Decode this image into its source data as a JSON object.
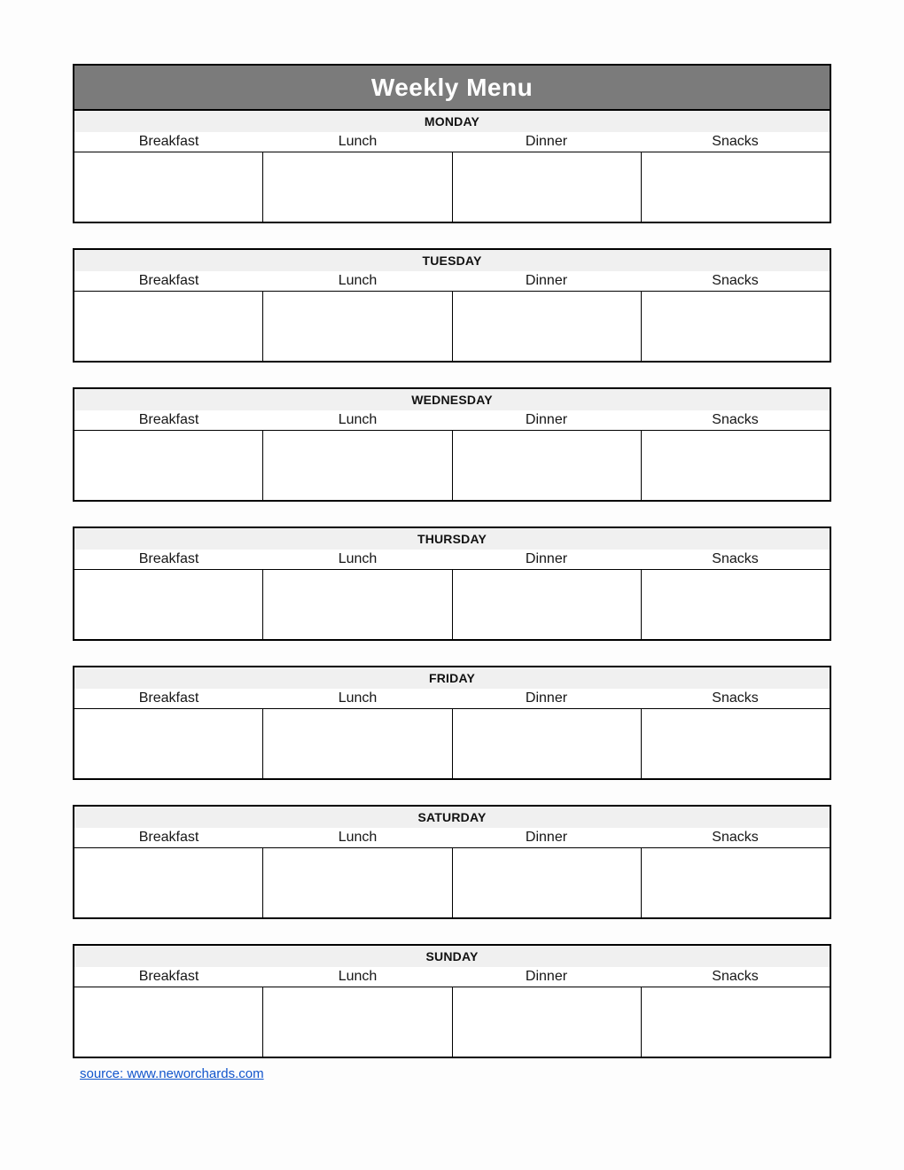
{
  "title": "Weekly Menu",
  "meal_headers": [
    "Breakfast",
    "Lunch",
    "Dinner",
    "Snacks"
  ],
  "days": [
    {
      "label": "MONDAY",
      "meals": [
        "",
        "",
        "",
        ""
      ]
    },
    {
      "label": "TUESDAY",
      "meals": [
        "",
        "",
        "",
        ""
      ]
    },
    {
      "label": "WEDNESDAY",
      "meals": [
        "",
        "",
        "",
        ""
      ]
    },
    {
      "label": "THURSDAY",
      "meals": [
        "",
        "",
        "",
        ""
      ]
    },
    {
      "label": "FRIDAY",
      "meals": [
        "",
        "",
        "",
        ""
      ]
    },
    {
      "label": "SATURDAY",
      "meals": [
        "",
        "",
        "",
        ""
      ]
    },
    {
      "label": "SUNDAY",
      "meals": [
        "",
        "",
        "",
        ""
      ]
    }
  ],
  "source_link": {
    "text": "source: www.neworchards.com"
  },
  "colors": {
    "title_band_bg": "#7b7b7b",
    "title_text": "#ffffff",
    "day_band_bg": "#f0f0f0",
    "border": "#000000",
    "link": "#1155cc"
  }
}
